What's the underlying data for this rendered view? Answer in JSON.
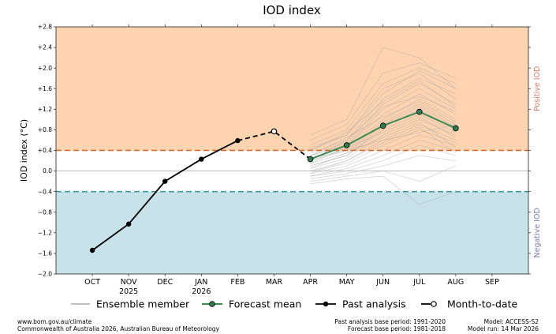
{
  "chart_data": {
    "type": "line",
    "title": "IOD index",
    "ylabel": "IOD index (°C)",
    "ylim": [
      -2.0,
      2.8
    ],
    "yticks": [
      "+2.8",
      "+2.4",
      "+2.0",
      "+1.6",
      "+1.2",
      "+0.8",
      "+0.4",
      "0.0",
      "−0.4",
      "−0.8",
      "−1.2",
      "−1.6",
      "−2.0"
    ],
    "ytick_values": [
      2.8,
      2.4,
      2.0,
      1.6,
      1.2,
      0.8,
      0.4,
      0.0,
      -0.4,
      -0.8,
      -1.2,
      -1.6,
      -2.0
    ],
    "categories": [
      "OCT",
      "NOV",
      "DEC",
      "JAN",
      "FEB",
      "MAR",
      "APR",
      "MAY",
      "JUN",
      "JUL",
      "AUG",
      "SEP"
    ],
    "year_labels": [
      {
        "index": 1,
        "text": "2025"
      },
      {
        "index": 3,
        "text": "2026"
      }
    ],
    "thresholds": {
      "positive": 0.4,
      "negative": -0.4
    },
    "region_labels": {
      "positive": "Positive IOD",
      "negative": "Negative IOD"
    },
    "colors": {
      "positive_fill": "#fdd3b0",
      "negative_fill": "#c8e2e9",
      "positive_line": "#d9641e",
      "negative_line": "#3a9ba3",
      "positive_text": "#e07b6b",
      "negative_text": "#7d7db5",
      "forecast_line": "#3d8a57",
      "forecast_marker": "#2e7d52",
      "ensemble_line": "#aaaaaa"
    },
    "series": [
      {
        "name": "Past analysis",
        "x": [
          0,
          1,
          2,
          3,
          4
        ],
        "values": [
          -1.54,
          -1.03,
          -0.2,
          0.23,
          0.59
        ]
      },
      {
        "name": "Month-to-date",
        "x": [
          4,
          5,
          6
        ],
        "values": [
          0.59,
          0.77,
          0.23
        ]
      },
      {
        "name": "Forecast mean",
        "x": [
          6,
          7,
          8,
          9,
          10
        ],
        "values": [
          0.23,
          0.5,
          0.88,
          1.15,
          0.83
        ]
      }
    ],
    "ensemble": {
      "name": "Ensemble member",
      "x": [
        6,
        7,
        8,
        9,
        10
      ],
      "members": [
        [
          0.7,
          1.0,
          2.4,
          2.2,
          1.6
        ],
        [
          0.6,
          0.9,
          1.9,
          2.1,
          1.8
        ],
        [
          0.5,
          0.8,
          1.7,
          2.0,
          1.7
        ],
        [
          0.4,
          0.7,
          1.6,
          1.9,
          1.4
        ],
        [
          0.35,
          0.6,
          1.4,
          1.8,
          1.5
        ],
        [
          0.3,
          0.55,
          1.3,
          1.7,
          1.3
        ],
        [
          0.3,
          0.5,
          1.2,
          1.6,
          1.2
        ],
        [
          0.25,
          0.5,
          1.1,
          1.5,
          1.1
        ],
        [
          0.2,
          0.45,
          1.0,
          1.4,
          1.0
        ],
        [
          0.2,
          0.4,
          0.95,
          1.3,
          0.9
        ],
        [
          0.15,
          0.35,
          0.9,
          1.25,
          0.85
        ],
        [
          0.1,
          0.3,
          0.85,
          1.2,
          0.8
        ],
        [
          0.1,
          0.3,
          0.8,
          1.1,
          0.75
        ],
        [
          0.05,
          0.25,
          0.7,
          1.0,
          0.7
        ],
        [
          0.0,
          0.2,
          0.6,
          0.9,
          0.6
        ],
        [
          0.0,
          0.15,
          0.5,
          0.8,
          0.55
        ],
        [
          -0.05,
          0.1,
          0.4,
          0.7,
          0.5
        ],
        [
          -0.1,
          0.05,
          0.3,
          0.6,
          0.4
        ],
        [
          -0.1,
          0.0,
          0.2,
          0.5,
          0.3
        ],
        [
          -0.15,
          -0.05,
          0.1,
          0.3,
          0.2
        ],
        [
          -0.2,
          -0.1,
          0.0,
          -0.2,
          0.1
        ],
        [
          -0.25,
          -0.15,
          -0.1,
          -0.65,
          -0.4
        ],
        [
          0.45,
          0.7,
          1.5,
          1.95,
          1.6
        ],
        [
          0.2,
          0.6,
          1.25,
          1.45,
          1.15
        ],
        [
          0.3,
          0.65,
          1.05,
          1.35,
          0.95
        ],
        [
          0.15,
          0.45,
          0.75,
          1.05,
          0.65
        ],
        [
          0.05,
          0.35,
          0.65,
          0.95,
          0.45
        ],
        [
          -0.05,
          0.2,
          0.55,
          0.85,
          0.35
        ],
        [
          0.4,
          0.75,
          1.35,
          1.75,
          1.25
        ],
        [
          0.25,
          0.4,
          0.6,
          0.75,
          0.9
        ]
      ]
    },
    "legend": {
      "placement": "bottom"
    }
  },
  "footer": {
    "url": "www.bom.gov.au/climate",
    "copyright": "Commonwealth of Australia 2026, Australian Bureau of Meteorology",
    "past_base": "Past analysis base period: 1991-2020",
    "forecast_base": "Forecast base period: 1981-2018",
    "model": "Model: ACCESS-S2",
    "model_run": "Model run: 14 Mar 2026"
  }
}
